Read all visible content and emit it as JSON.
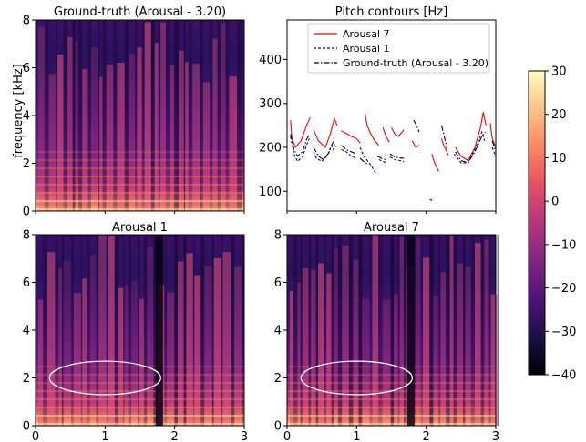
{
  "chart_data": [
    {
      "type": "heatmap",
      "title": "Ground-truth (Arousal - 3.20)",
      "ylabel": "frequency [kHz]",
      "xlim": [
        0,
        3
      ],
      "ylim": [
        0,
        8
      ],
      "yticks": [
        "0",
        "2",
        "4",
        "6",
        "8"
      ],
      "xticks": []
    },
    {
      "type": "line",
      "title": "Pitch contours [Hz]",
      "xlim": [
        0,
        3
      ],
      "ylim": [
        55,
        490
      ],
      "yticks": [
        "100",
        "200",
        "300",
        "400"
      ],
      "legend_position": "top",
      "series": [
        {
          "name": "Arousal 7",
          "color": "#ff0000",
          "style": "solid",
          "segments": [
            [
              [
                0.05,
                262
              ],
              [
                0.07,
                220
              ],
              [
                0.12,
                200
              ],
              [
                0.2,
                215
              ],
              [
                0.28,
                250
              ],
              [
                0.33,
                268
              ]
            ],
            [
              [
                0.38,
                240
              ],
              [
                0.45,
                215
              ],
              [
                0.55,
                200
              ],
              [
                0.62,
                230
              ],
              [
                0.68,
                265
              ],
              [
                0.72,
                250
              ]
            ],
            [
              [
                0.78,
                238
              ],
              [
                0.85,
                232
              ],
              [
                0.92,
                225
              ],
              [
                1.0,
                220
              ],
              [
                1.05,
                210
              ]
            ],
            [
              [
                1.12,
                278
              ],
              [
                1.15,
                250
              ],
              [
                1.2,
                232
              ],
              [
                1.26,
                215
              ],
              [
                1.32,
                205
              ]
            ],
            [
              [
                1.38,
                245
              ],
              [
                1.42,
                225
              ],
              [
                1.47,
                212
              ]
            ],
            [
              [
                1.5,
                245
              ],
              [
                1.55,
                230
              ],
              [
                1.6,
                225
              ],
              [
                1.68,
                240
              ]
            ],
            [
              [
                1.8,
                215
              ],
              [
                1.85,
                200
              ],
              [
                1.9,
                205
              ]
            ],
            [
              [
                2.08,
                185
              ],
              [
                2.12,
                165
              ],
              [
                2.18,
                145
              ]
            ],
            [
              [
                2.22,
                220
              ],
              [
                2.25,
                205
              ],
              [
                2.32,
                182
              ]
            ],
            [
              [
                2.42,
                200
              ],
              [
                2.5,
                180
              ],
              [
                2.6,
                170
              ],
              [
                2.7,
                200
              ],
              [
                2.78,
                245
              ],
              [
                2.82,
                280
              ],
              [
                2.86,
                250
              ]
            ],
            [
              [
                2.92,
                255
              ],
              [
                2.95,
                220
              ],
              [
                3.0,
                200
              ]
            ]
          ]
        },
        {
          "name": "Arousal 1",
          "color": "#0000cc",
          "style": "dashed",
          "segments": [
            [
              [
                0.05,
                225
              ],
              [
                0.1,
                185
              ],
              [
                0.15,
                168
              ],
              [
                0.22,
                178
              ],
              [
                0.28,
                205
              ],
              [
                0.32,
                220
              ]
            ],
            [
              [
                0.38,
                190
              ],
              [
                0.42,
                175
              ],
              [
                0.5,
                168
              ],
              [
                0.58,
                182
              ],
              [
                0.64,
                205
              ],
              [
                0.68,
                190
              ]
            ],
            [
              [
                0.78,
                195
              ],
              [
                0.85,
                190
              ],
              [
                0.92,
                180
              ],
              [
                1.0,
                175
              ]
            ],
            [
              [
                1.05,
                200
              ],
              [
                1.1,
                180
              ],
              [
                1.18,
                165
              ],
              [
                1.24,
                150
              ],
              [
                1.28,
                140
              ]
            ],
            [
              [
                1.32,
                172
              ],
              [
                1.38,
                168
              ],
              [
                1.42,
                165
              ]
            ],
            [
              [
                1.48,
                178
              ],
              [
                1.55,
                172
              ],
              [
                1.62,
                170
              ],
              [
                1.68,
                168
              ]
            ],
            [
              [
                2.05,
                82
              ],
              [
                2.1,
                78
              ]
            ],
            [
              [
                2.4,
                185
              ],
              [
                2.5,
                165
              ],
              [
                2.6,
                165
              ],
              [
                2.7,
                195
              ],
              [
                2.8,
                235
              ],
              [
                2.84,
                215
              ]
            ],
            [
              [
                2.95,
                200
              ],
              [
                3.0,
                178
              ]
            ]
          ]
        },
        {
          "name": "Ground-truth (Arousal - 3.20)",
          "color": "#000000",
          "style": "dashdot",
          "segments": [
            [
              [
                0.05,
                230
              ],
              [
                0.1,
                195
              ],
              [
                0.15,
                180
              ],
              [
                0.22,
                190
              ],
              [
                0.28,
                218
              ],
              [
                0.32,
                230
              ]
            ],
            [
              [
                0.38,
                200
              ],
              [
                0.45,
                180
              ],
              [
                0.52,
                172
              ],
              [
                0.6,
                188
              ],
              [
                0.66,
                212
              ],
              [
                0.7,
                200
              ]
            ],
            [
              [
                0.78,
                205
              ],
              [
                0.85,
                195
              ],
              [
                0.92,
                190
              ],
              [
                1.0,
                185
              ]
            ],
            [
              [
                1.05,
                175
              ],
              [
                1.1,
                168
              ],
              [
                1.15,
                162
              ]
            ],
            [
              [
                1.3,
                180
              ],
              [
                1.36,
                175
              ],
              [
                1.42,
                172
              ]
            ],
            [
              [
                1.48,
                185
              ],
              [
                1.55,
                178
              ],
              [
                1.62,
                176
              ],
              [
                1.68,
                175
              ]
            ],
            [
              [
                1.82,
                262
              ],
              [
                1.86,
                250
              ],
              [
                1.9,
                235
              ]
            ],
            [
              [
                2.22,
                250
              ],
              [
                2.26,
                225
              ],
              [
                2.3,
                195
              ]
            ],
            [
              [
                2.42,
                190
              ],
              [
                2.5,
                170
              ],
              [
                2.6,
                165
              ],
              [
                2.7,
                190
              ],
              [
                2.8,
                225
              ],
              [
                2.85,
                235
              ]
            ],
            [
              [
                2.95,
                215
              ],
              [
                3.0,
                190
              ]
            ]
          ]
        }
      ]
    },
    {
      "type": "heatmap",
      "title": "Arousal 1",
      "xlim": [
        0,
        3
      ],
      "ylim": [
        0,
        8
      ],
      "xticks": [
        "0",
        "1",
        "2",
        "3"
      ],
      "yticks": [
        "0",
        "2",
        "4",
        "6",
        "8"
      ],
      "annotation": {
        "shape": "ellipse",
        "center": [
          1.0,
          2.0
        ],
        "half_width": 0.8,
        "half_height": 0.7
      }
    },
    {
      "type": "heatmap",
      "title": "Arousal 7",
      "xlim": [
        0,
        3
      ],
      "ylim": [
        0,
        8
      ],
      "xticks": [
        "0",
        "1",
        "2",
        "3"
      ],
      "yticks": [
        "0",
        "2",
        "4",
        "6",
        "8"
      ],
      "annotation": {
        "shape": "ellipse",
        "center": [
          1.0,
          2.0
        ],
        "half_width": 0.8,
        "half_height": 0.7
      }
    }
  ],
  "colorbar": {
    "range": [
      -40,
      30
    ],
    "ticks": [
      "30",
      "20",
      "10",
      "0",
      "−10",
      "−20",
      "−30",
      "−40"
    ],
    "colormap": "magma",
    "colors": [
      "#000004",
      "#1c1044",
      "#4f127b",
      "#812581",
      "#b5367a",
      "#e55064",
      "#fb8761",
      "#fec287",
      "#fcfdbf"
    ]
  }
}
